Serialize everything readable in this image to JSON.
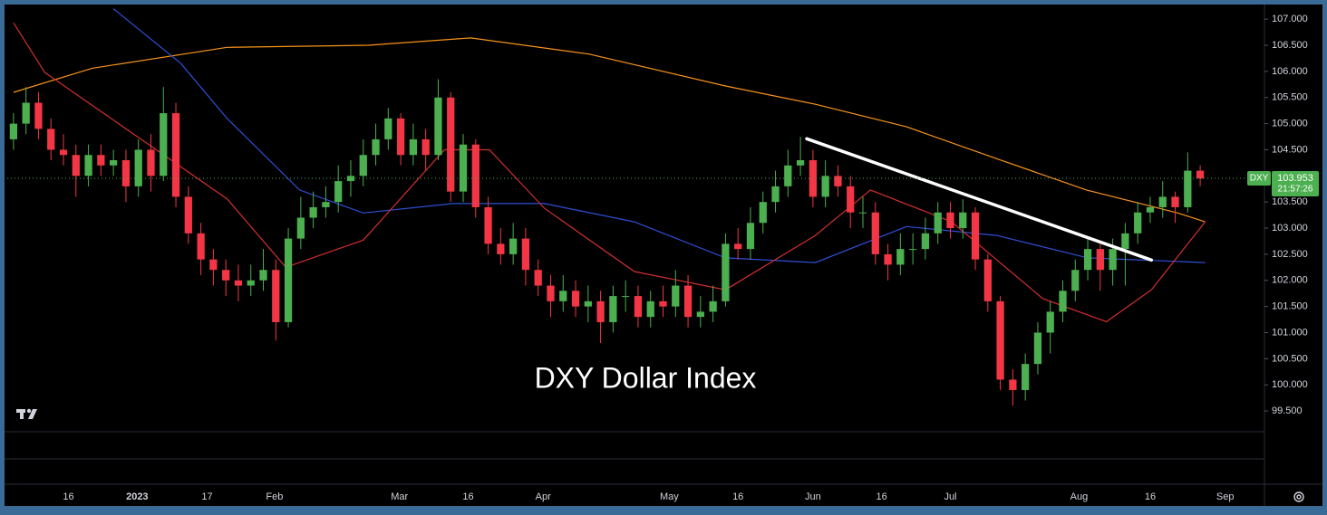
{
  "chart_data": {
    "type": "candlestick",
    "title": "DXY Dollar Index",
    "symbol": "DXY",
    "last_price": 103.953,
    "countdown": "21:57:26",
    "up_color": "#4caf50",
    "down_color": "#f23645",
    "ylim": [
      99.12,
      107.28
    ],
    "yticks": [
      {
        "value": 99.5,
        "label": "99.500"
      },
      {
        "value": 100,
        "label": "100.000"
      },
      {
        "value": 100.5,
        "label": "100.500"
      },
      {
        "value": 101,
        "label": "101.000"
      },
      {
        "value": 101.5,
        "label": "101.500"
      },
      {
        "value": 102,
        "label": "102.000"
      },
      {
        "value": 102.5,
        "label": "102.500"
      },
      {
        "value": 103,
        "label": "103.000"
      },
      {
        "value": 103.5,
        "label": "103.500"
      },
      {
        "value": 104,
        "label": "104.000"
      },
      {
        "value": 104.5,
        "label": "104.500"
      },
      {
        "value": 105,
        "label": "105.000"
      },
      {
        "value": 105.5,
        "label": "105.500"
      },
      {
        "value": 106,
        "label": "106.000"
      },
      {
        "value": 106.5,
        "label": "106.500"
      },
      {
        "value": 107,
        "label": "107.000"
      }
    ],
    "xlim": [
      -0.5,
      100
    ],
    "xticks": [
      {
        "value": 4.4,
        "label": "16"
      },
      {
        "value": 9.9,
        "label": "2023"
      },
      {
        "value": 15.5,
        "label": "17"
      },
      {
        "value": 20.9,
        "label": "Feb"
      },
      {
        "value": 30.9,
        "label": "Mar"
      },
      {
        "value": 36.4,
        "label": "16"
      },
      {
        "value": 42.4,
        "label": "Apr"
      },
      {
        "value": 52.5,
        "label": "May"
      },
      {
        "value": 58.0,
        "label": "16"
      },
      {
        "value": 64.0,
        "label": "Jun"
      },
      {
        "value": 69.5,
        "label": "16"
      },
      {
        "value": 75.0,
        "label": "Jul"
      },
      {
        "value": 85.3,
        "label": "Aug"
      },
      {
        "value": 91.0,
        "label": "16"
      },
      {
        "value": 97.0,
        "label": "Sep"
      }
    ],
    "open": [
      104.7,
      105.0,
      105.4,
      104.9,
      104.5,
      104.4,
      104.0,
      104.4,
      104.2,
      104.3,
      103.8,
      104.5,
      104.0,
      105.2,
      103.6,
      102.9,
      102.4,
      102.2,
      102.0,
      101.9,
      102.0,
      102.2,
      101.2,
      102.8,
      103.2,
      103.4,
      103.5,
      103.9,
      104.0,
      104.4,
      104.7,
      105.1,
      104.4,
      104.7,
      104.4,
      105.5,
      103.7,
      104.6,
      103.4,
      102.7,
      102.5,
      102.8,
      102.2,
      101.9,
      101.6,
      101.8,
      101.5,
      101.6,
      101.2,
      101.7,
      101.7,
      101.3,
      101.6,
      101.5,
      101.9,
      101.3,
      101.4,
      101.6,
      102.7,
      102.6,
      103.1,
      103.5,
      103.8,
      104.2,
      104.3,
      103.6,
      104.0,
      103.8,
      103.3,
      103.3,
      102.5,
      102.3,
      102.6,
      102.6,
      102.9,
      103.3,
      103.0,
      103.3,
      102.4,
      101.6,
      100.1,
      99.9,
      100.4,
      101.0,
      101.4,
      101.8,
      102.2,
      102.6,
      102.2,
      102.6,
      102.9,
      103.3,
      103.4,
      103.6,
      103.4,
      104.1
    ],
    "high": [
      105.2,
      105.7,
      105.6,
      105.1,
      104.8,
      104.6,
      104.6,
      104.6,
      104.5,
      104.5,
      104.7,
      104.8,
      105.7,
      105.4,
      103.8,
      103.1,
      102.6,
      102.4,
      102.3,
      102.3,
      102.6,
      102.4,
      103.0,
      103.6,
      103.7,
      103.8,
      104.2,
      104.3,
      104.7,
      105.0,
      105.3,
      105.2,
      105.0,
      104.9,
      105.85,
      105.6,
      104.8,
      104.7,
      103.6,
      103.0,
      103.1,
      103.0,
      102.4,
      102.1,
      102.1,
      102.0,
      101.9,
      101.8,
      101.9,
      102.0,
      101.9,
      101.8,
      101.9,
      102.2,
      102.1,
      101.7,
      101.9,
      102.9,
      103.0,
      103.4,
      103.7,
      104.1,
      104.5,
      104.75,
      104.5,
      104.3,
      104.2,
      104.0,
      103.6,
      103.5,
      102.7,
      102.9,
      102.9,
      103.2,
      103.5,
      103.5,
      103.55,
      103.4,
      102.5,
      101.7,
      100.3,
      100.6,
      101.2,
      101.6,
      102.0,
      102.4,
      102.8,
      102.7,
      102.8,
      103.1,
      103.5,
      103.6,
      103.9,
      103.7,
      104.45,
      104.2
    ],
    "low": [
      104.5,
      104.8,
      104.7,
      104.3,
      104.2,
      103.6,
      103.8,
      104.0,
      104.0,
      103.5,
      103.6,
      103.7,
      103.9,
      103.4,
      102.7,
      102.1,
      101.9,
      101.7,
      101.6,
      101.7,
      101.8,
      100.85,
      101.1,
      102.6,
      103.0,
      103.2,
      103.3,
      103.6,
      103.8,
      104.2,
      104.5,
      104.2,
      104.2,
      104.1,
      104.3,
      103.5,
      103.5,
      103.2,
      102.5,
      102.3,
      102.3,
      101.9,
      101.7,
      101.3,
      101.4,
      101.3,
      101.2,
      100.8,
      101.0,
      101.4,
      101.1,
      101.1,
      101.3,
      101.3,
      101.1,
      101.1,
      101.2,
      101.5,
      102.4,
      102.4,
      102.9,
      103.3,
      103.6,
      104.0,
      103.4,
      103.4,
      103.6,
      103.0,
      103.0,
      102.3,
      102.0,
      102.1,
      102.3,
      102.4,
      102.7,
      102.8,
      102.8,
      102.2,
      101.4,
      99.9,
      99.6,
      99.7,
      100.2,
      100.6,
      101.2,
      101.6,
      102.0,
      101.8,
      101.9,
      101.9,
      102.7,
      103.1,
      103.2,
      103.1,
      103.3,
      103.8
    ],
    "close": [
      105.0,
      105.4,
      104.9,
      104.5,
      104.4,
      104.0,
      104.4,
      104.2,
      104.3,
      103.8,
      104.5,
      104.0,
      105.2,
      103.6,
      102.9,
      102.4,
      102.2,
      102.0,
      101.9,
      102.0,
      102.2,
      101.2,
      102.8,
      103.2,
      103.4,
      103.5,
      103.9,
      104.0,
      104.4,
      104.7,
      105.1,
      104.4,
      104.7,
      104.4,
      105.5,
      103.7,
      104.6,
      103.4,
      102.7,
      102.5,
      102.8,
      102.2,
      101.9,
      101.6,
      101.8,
      101.5,
      101.6,
      101.2,
      101.7,
      101.7,
      101.3,
      101.6,
      101.5,
      101.9,
      101.3,
      101.4,
      101.6,
      102.7,
      102.6,
      103.1,
      103.5,
      103.8,
      104.2,
      104.3,
      103.6,
      104.0,
      103.8,
      103.3,
      103.3,
      102.5,
      102.3,
      102.6,
      102.6,
      102.9,
      103.3,
      103.0,
      103.3,
      102.4,
      101.6,
      100.1,
      99.9,
      100.4,
      101.0,
      101.4,
      101.8,
      102.2,
      102.6,
      102.2,
      102.6,
      102.9,
      103.3,
      103.4,
      103.6,
      103.4,
      104.1,
      103.95
    ],
    "moving_averages": [
      {
        "color": "#f7931a",
        "x": [
          0,
          6.3,
          17.1,
          28.4,
          36.6,
          46.1,
          57.0,
          64.2,
          71.5,
          78.7,
          85.9,
          93.2,
          95.4
        ],
        "values": [
          105.6,
          106.06,
          106.46,
          106.5,
          106.64,
          106.33,
          105.72,
          105.37,
          104.94,
          104.33,
          103.73,
          103.29,
          103.12
        ]
      },
      {
        "color": "#2f4fd6",
        "x": [
          8,
          13.4,
          17.1,
          22.9,
          28,
          35.2,
          42.5,
          49.7,
          57,
          64.2,
          71.5,
          78.7,
          86,
          95.4
        ],
        "values": [
          107.2,
          106.15,
          105.1,
          103.73,
          103.29,
          103.47,
          103.47,
          103.12,
          102.43,
          102.34,
          103.03,
          102.86,
          102.43,
          102.34
        ]
      },
      {
        "color": "#d32f2f",
        "x": [
          0,
          2.5,
          9.8,
          17.1,
          21.8,
          28,
          34.5,
          38.1,
          42.5,
          49.7,
          57,
          64.2,
          68.6,
          75.1,
          82.4,
          87.5,
          91.1,
          95.4
        ],
        "values": [
          106.93,
          105.98,
          104.77,
          103.56,
          102.25,
          102.77,
          104.5,
          104.5,
          103.38,
          102.17,
          101.82,
          102.86,
          103.73,
          103.12,
          101.65,
          101.21,
          101.82,
          103.12
        ]
      }
    ],
    "trendline": {
      "color": "#ffffff",
      "x": [
        63.5,
        91.1
      ],
      "values": [
        104.71,
        102.39
      ]
    }
  }
}
